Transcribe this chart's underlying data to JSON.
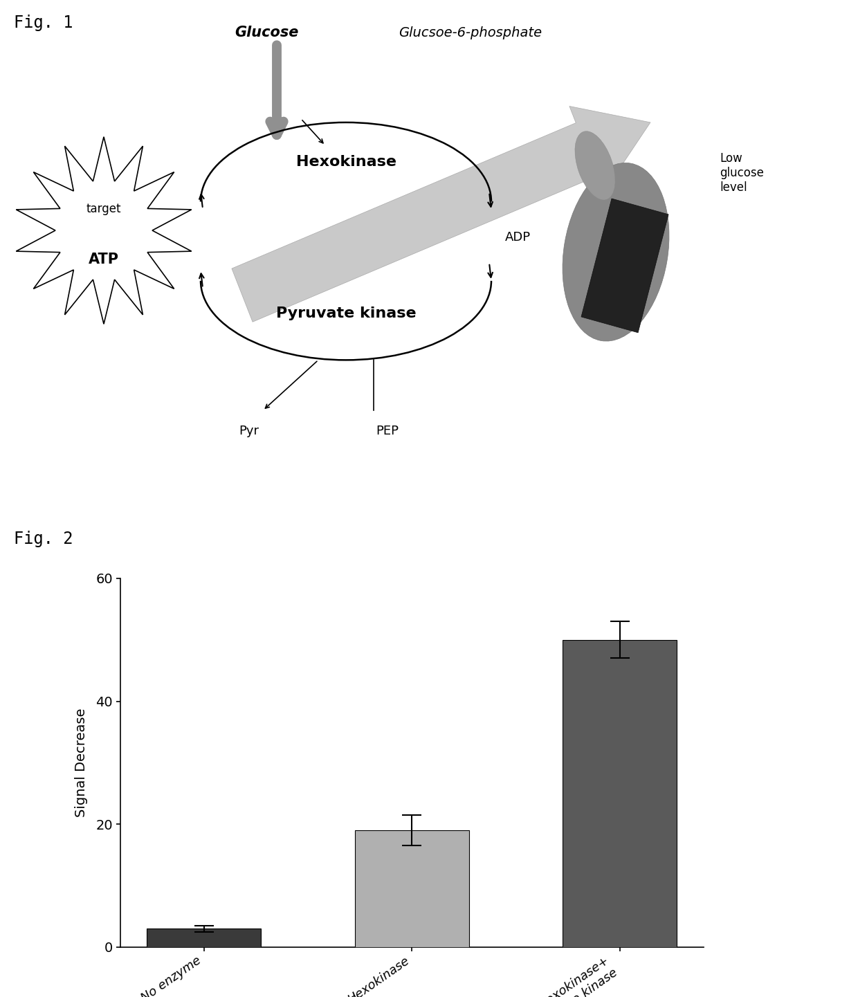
{
  "fig1_label": "Fig. 1",
  "fig2_label": "Fig. 2",
  "glucose_label": "Glucose",
  "g6p_label": "Glucsoe-6-phosphate",
  "hexokinase_label": "Hexokinase",
  "adp_label": "ADP",
  "pyruvate_kinase_label": "Pyruvate kinase",
  "pyr_label": "Pyr",
  "pep_label": "PEP",
  "target_label": "target",
  "atp_label": "ATP",
  "low_glucose_label": "Low\nglucose\nlevel",
  "bar_categories": [
    "No enzyme",
    "Hexokinase",
    "Hexokinase+\nPyruvate kinase"
  ],
  "bar_values": [
    3.0,
    19.0,
    50.0
  ],
  "bar_errors": [
    0.5,
    2.5,
    3.0
  ],
  "bar_colors": [
    "#3a3a3a",
    "#b0b0b0",
    "#5a5a5a"
  ],
  "ylabel": "Signal Decrease",
  "ylim": [
    0,
    60
  ],
  "yticks": [
    0,
    20,
    40,
    60
  ],
  "background_color": "#ffffff",
  "arrow_color": "#b0b0b0",
  "big_arrow_color": "#c0c0c0",
  "down_arrow_color": "#909090"
}
